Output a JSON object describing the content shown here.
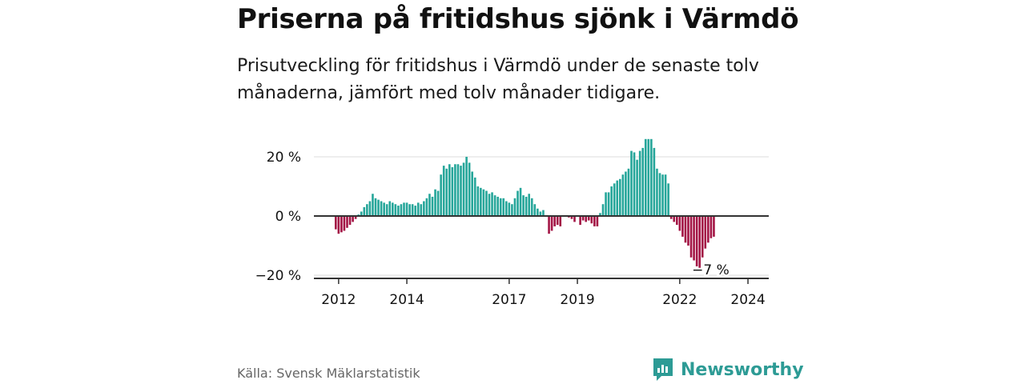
{
  "title": "Priserna på fritidshus sjönk i Värmdö",
  "subtitle": "Prisutveckling för fritidshus i Värmdö under de senaste tolv månaderna, jämfört med tolv månader tidigare.",
  "source": "Källa: Svensk Mäklarstatistik",
  "brand": "Newsworthy",
  "colors": {
    "positive": "#26a69a",
    "negative": "#a31545",
    "brand": "#2d9b95"
  },
  "chart_data": {
    "type": "bar",
    "title": "Priserna på fritidshus sjönk i Värmdö",
    "xlabel": "",
    "ylabel": "",
    "ylim": [
      -20,
      30
    ],
    "yticks": [
      20,
      0,
      -20
    ],
    "ytick_labels": [
      "20 %",
      "0 %",
      "−20 %"
    ],
    "xtick_labels": [
      "2012",
      "2014",
      "2017",
      "2019",
      "2022",
      "2024"
    ],
    "xtick_index": [
      1,
      25,
      61,
      85,
      121,
      145
    ],
    "annotation": "−7 %",
    "values": [
      -4.5,
      -6,
      -5.5,
      -5,
      -4,
      -3,
      -2,
      -1,
      0.5,
      1.5,
      3,
      4,
      5,
      7.5,
      6,
      5.5,
      5,
      4.5,
      4,
      5,
      4.5,
      4,
      3.5,
      4,
      4.5,
      4.5,
      4,
      4,
      3.5,
      4.5,
      4,
      5,
      6,
      7.5,
      6.5,
      9,
      8.5,
      14,
      17,
      16,
      17.5,
      16.5,
      17.5,
      17.5,
      17,
      18,
      20,
      18,
      15,
      13,
      10,
      9.5,
      9,
      8.5,
      7.5,
      8,
      7,
      6.5,
      6,
      6,
      5,
      4.5,
      4,
      6,
      8.5,
      9.5,
      7,
      6.5,
      7.5,
      6,
      4,
      2.5,
      1.5,
      2,
      0,
      -6,
      -5,
      -3.5,
      -3,
      -3.5,
      0,
      0,
      -0.5,
      -1,
      -2,
      0,
      -3,
      -1.5,
      -2,
      -1.5,
      -2.5,
      -3.5,
      -3.5,
      1,
      4,
      8,
      8,
      10,
      11,
      12,
      12.5,
      14,
      15,
      16,
      22,
      21.5,
      19,
      22,
      23,
      26,
      26,
      26,
      23,
      16,
      14.5,
      14,
      14,
      11,
      -1,
      -2,
      -3,
      -5,
      -7,
      -9,
      -10,
      -14,
      -15,
      -17,
      -17.5,
      -14,
      -11,
      -9,
      -7.5,
      -7
    ]
  }
}
